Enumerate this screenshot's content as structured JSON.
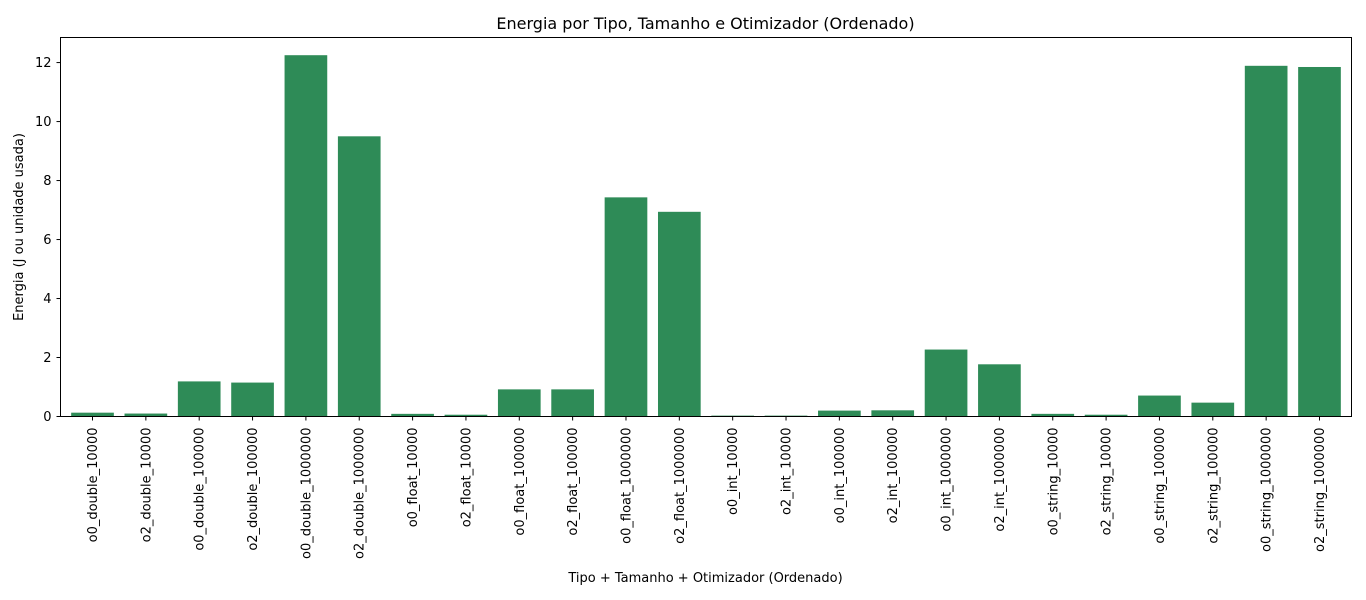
{
  "chart_data": {
    "type": "bar",
    "title": "Energia por Tipo, Tamanho e Otimizador (Ordenado)",
    "xlabel": "Tipo + Tamanho + Otimizador (Ordenado)",
    "ylabel": "Energia (J ou unidade usada)",
    "ylim": [
      0,
      12.85
    ],
    "yticks": [
      0,
      2,
      4,
      6,
      8,
      10,
      12
    ],
    "bar_color": "#2e8b57",
    "grid": false,
    "categories": [
      "o0_double_10000",
      "o2_double_10000",
      "o0_double_100000",
      "o2_double_100000",
      "o0_double_1000000",
      "o2_double_1000000",
      "o0_float_10000",
      "o2_float_10000",
      "o0_float_100000",
      "o2_float_100000",
      "o0_float_1000000",
      "o2_float_1000000",
      "o0_int_10000",
      "o2_int_10000",
      "o0_int_100000",
      "o2_int_100000",
      "o0_int_1000000",
      "o2_int_1000000",
      "o0_string_10000",
      "o2_string_10000",
      "o0_string_100000",
      "o2_string_100000",
      "o0_string_1000000",
      "o2_string_1000000"
    ],
    "values": [
      0.13,
      0.1,
      1.19,
      1.15,
      12.25,
      9.5,
      0.09,
      0.06,
      0.92,
      0.92,
      7.43,
      6.94,
      0.03,
      0.03,
      0.2,
      0.21,
      2.27,
      1.77,
      0.09,
      0.06,
      0.71,
      0.47,
      11.89,
      11.85
    ]
  }
}
